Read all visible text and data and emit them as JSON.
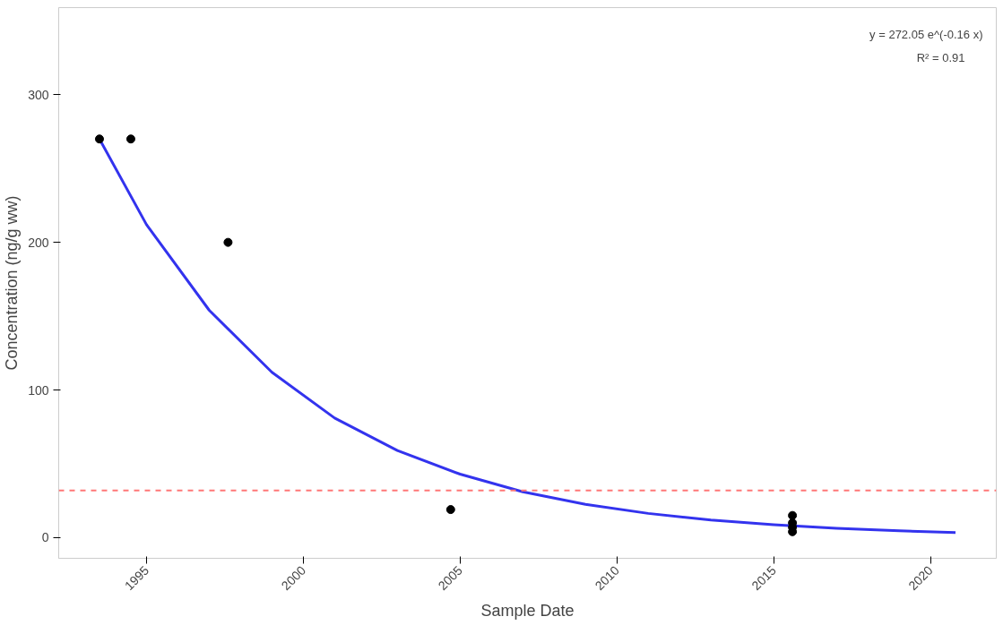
{
  "chart_data": {
    "type": "scatter",
    "xlabel": "Sample Date",
    "ylabel": "Concentration (ng/g ww)",
    "x": [
      1993.5,
      1994.5,
      1997.6,
      2004.7,
      2015.6,
      2015.6,
      2015.6,
      2015.6
    ],
    "series": [
      {
        "color": "#000000",
        "marker": "circle",
        "values": [
          270,
          270,
          200,
          19,
          15,
          10,
          7,
          4
        ]
      },
      {
        "type": "line",
        "color": "#3333ee",
        "x": [
          1993.5,
          1995,
          1997,
          1999,
          2001,
          2003,
          2005,
          2007,
          2009,
          2011,
          2013,
          2015,
          2017,
          2019,
          2020.8
        ],
        "values": [
          270,
          212,
          154,
          112,
          81,
          59,
          43,
          31,
          22.6,
          16.4,
          11.9,
          8.7,
          6.3,
          4.6,
          3.4
        ]
      }
    ],
    "xlim": [
      1992.2,
      2022.1
    ],
    "xticks": [
      1995,
      2000,
      2005,
      2010,
      2015,
      2020
    ],
    "ylim": [
      -14,
      359
    ],
    "yticks": [
      0,
      100,
      200,
      300
    ],
    "ref_lines": [
      {
        "axis": "y",
        "value": 32,
        "color": "#ff7777",
        "line_style": "dashed"
      }
    ],
    "annotations": [
      "y = 272.05 e^(-0.16 x)",
      "R² = 0.91"
    ],
    "grid": false
  }
}
